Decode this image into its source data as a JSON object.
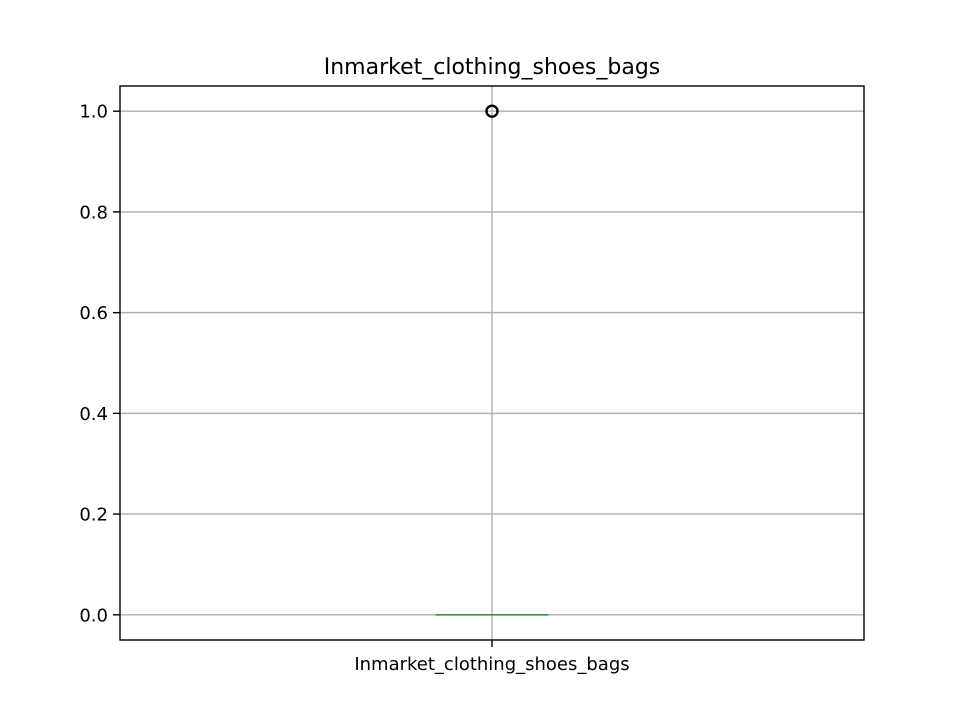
{
  "chart_data": {
    "type": "box",
    "title": "Inmarket_clothing_shoes_bags",
    "xlabel": "",
    "ylabel": "",
    "categories": [
      "Inmarket_clothing_shoes_bags"
    ],
    "ylim": [
      -0.05,
      1.05
    ],
    "yticks": [
      0.0,
      0.2,
      0.4,
      0.6,
      0.8,
      1.0
    ],
    "ytick_labels": [
      "0.0",
      "0.2",
      "0.4",
      "0.6",
      "0.8",
      "1.0"
    ],
    "grid": true,
    "series": [
      {
        "category": "Inmarket_clothing_shoes_bags",
        "min": 0.0,
        "q1": 0.0,
        "median": 0.0,
        "q3": 0.0,
        "max": 0.0,
        "outliers": [
          1.0
        ]
      }
    ],
    "colors": {
      "box": "#1f77b4",
      "median": "#2ca02c",
      "whisker": "#1f77b4",
      "outlier": "#000000",
      "grid": "#b0b0b0"
    }
  }
}
